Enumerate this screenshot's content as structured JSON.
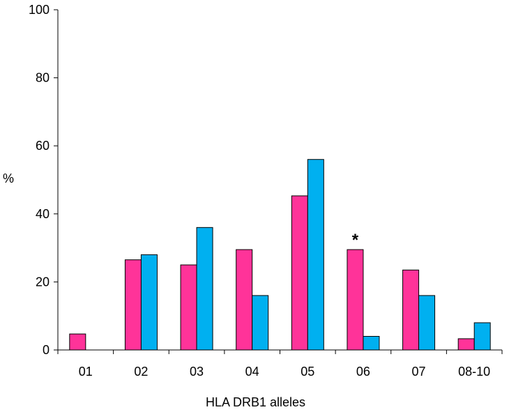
{
  "chart_data": {
    "type": "bar",
    "title": "",
    "xlabel": "HLA DRB1 alleles",
    "ylabel": "%",
    "ylim": [
      0,
      100
    ],
    "yticks": [
      0,
      20,
      40,
      60,
      80,
      100
    ],
    "grid": false,
    "legend": "none",
    "categories": [
      "01",
      "02",
      "03",
      "04",
      "05",
      "06",
      "07",
      "08-10"
    ],
    "series": [
      {
        "color": "#ff3399",
        "values": [
          4.7,
          26.5,
          25.0,
          29.5,
          45.3,
          29.5,
          23.5,
          3.3
        ]
      },
      {
        "color": "#00b0f0",
        "values": [
          0,
          28.0,
          36.0,
          16.0,
          56.0,
          4.0,
          16.0,
          8.0
        ]
      }
    ],
    "annotations": [
      {
        "category": "06",
        "text": "*"
      }
    ]
  }
}
